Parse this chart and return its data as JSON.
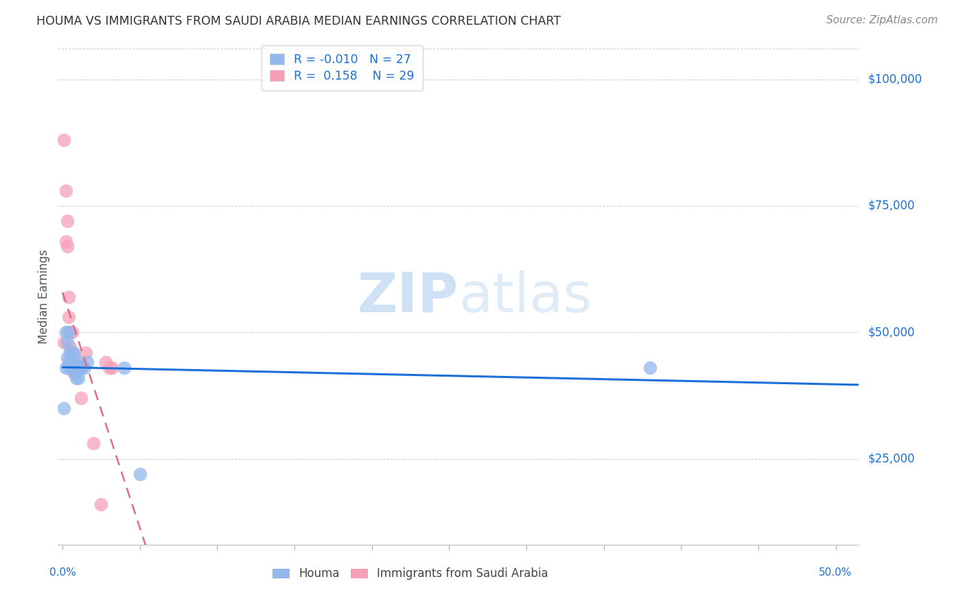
{
  "title": "HOUMA VS IMMIGRANTS FROM SAUDI ARABIA MEDIAN EARNINGS CORRELATION CHART",
  "source": "Source: ZipAtlas.com",
  "ylabel": "Median Earnings",
  "ytick_labels": [
    "$25,000",
    "$50,000",
    "$75,000",
    "$100,000"
  ],
  "ytick_values": [
    25000,
    50000,
    75000,
    100000
  ],
  "ymin": 8000,
  "ymax": 106000,
  "xmin": -0.003,
  "xmax": 0.515,
  "legend_r_houma": "-0.010",
  "legend_n_houma": "27",
  "legend_r_saudi": "0.158",
  "legend_n_saudi": "29",
  "houma_color": "#92B8EC",
  "saudi_color": "#F5A0B8",
  "houma_trend_color": "#1B6FD8",
  "saudi_trend_color": "#E06888",
  "watermark_color": "#C8DCF4",
  "houma_x": [
    0.001,
    0.002,
    0.002,
    0.003,
    0.003,
    0.004,
    0.004,
    0.005,
    0.005,
    0.006,
    0.006,
    0.007,
    0.007,
    0.007,
    0.008,
    0.008,
    0.009,
    0.009,
    0.01,
    0.01,
    0.011,
    0.012,
    0.014,
    0.016,
    0.04,
    0.05,
    0.38
  ],
  "houma_y": [
    35000,
    43000,
    50000,
    45000,
    48000,
    43000,
    50000,
    44000,
    46000,
    43000,
    44000,
    43000,
    44000,
    46000,
    42000,
    43000,
    41000,
    43000,
    41000,
    43000,
    44000,
    43000,
    43000,
    44000,
    43000,
    22000,
    43000
  ],
  "saudi_x": [
    0.001,
    0.001,
    0.002,
    0.002,
    0.003,
    0.003,
    0.004,
    0.004,
    0.004,
    0.005,
    0.005,
    0.005,
    0.006,
    0.006,
    0.007,
    0.007,
    0.007,
    0.008,
    0.009,
    0.01,
    0.011,
    0.012,
    0.012,
    0.015,
    0.02,
    0.025,
    0.028,
    0.03,
    0.032
  ],
  "saudi_y": [
    88000,
    48000,
    78000,
    68000,
    72000,
    67000,
    57000,
    53000,
    44000,
    50000,
    47000,
    43000,
    50000,
    45000,
    46000,
    44000,
    42000,
    43000,
    42000,
    43000,
    44000,
    43000,
    37000,
    46000,
    28000,
    16000,
    44000,
    43000,
    43000
  ]
}
